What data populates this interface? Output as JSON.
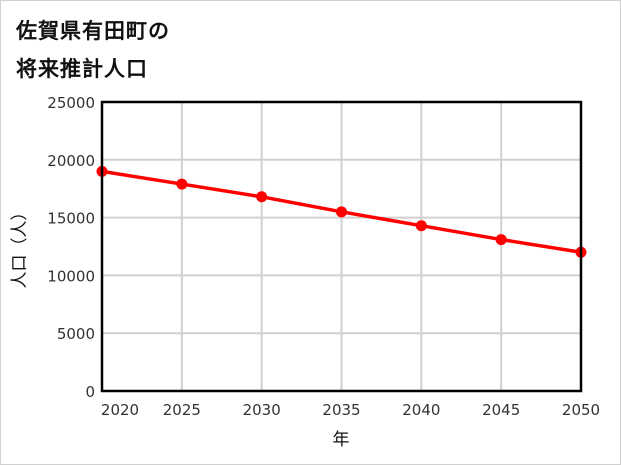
{
  "title": {
    "line1": "佐賀県有田町の",
    "line2": "将来推計人口"
  },
  "colors": {
    "series": "#ff0000",
    "grid": "#d0d0d0",
    "axis": "#000000",
    "frame_border": "#d0d0d0"
  },
  "chart_data": {
    "type": "line",
    "title": "佐賀県有田町の将来推計人口",
    "xlabel": "年",
    "ylabel": "人口（人）",
    "x": [
      2020,
      2025,
      2030,
      2035,
      2040,
      2045,
      2050
    ],
    "categories": [
      "2020",
      "2025",
      "2030",
      "2035",
      "2040",
      "2045",
      "2050"
    ],
    "series": [
      {
        "name": "人口",
        "values": [
          19000,
          17900,
          16800,
          15500,
          14300,
          13100,
          12000
        ],
        "color": "#ff0000",
        "marker": "circle"
      }
    ],
    "ylim": [
      0,
      25000
    ],
    "yticks": [
      "0",
      "5000",
      "10000",
      "15000",
      "20000",
      "25000"
    ],
    "xlim": [
      2020,
      2050
    ],
    "grid": true,
    "legend": "none"
  }
}
